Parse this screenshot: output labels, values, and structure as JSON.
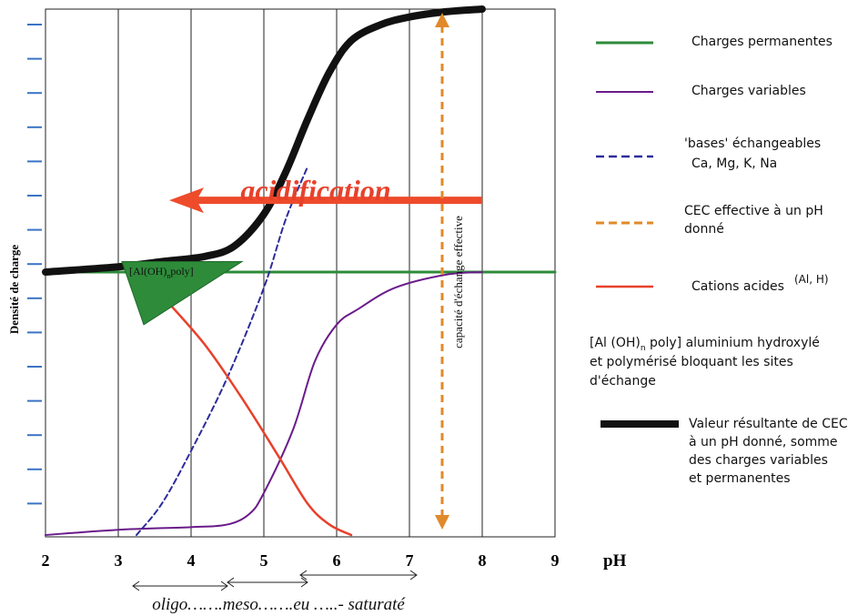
{
  "chart_data": {
    "type": "line",
    "title": "",
    "xlabel": "pH",
    "ylabel": "Densité de charge",
    "xlim": [
      2,
      9
    ],
    "x_ticks": [
      "2",
      "3",
      "4",
      "5",
      "6",
      "7",
      "8",
      "9"
    ],
    "grid": true,
    "legend_placement": "right",
    "series": [
      {
        "key": "permanent",
        "name": "Charges permanentes",
        "color": "#2e8b3a",
        "style": "solid",
        "x": [
          2,
          9
        ],
        "y": [
          0.5,
          0.5
        ]
      },
      {
        "key": "variable",
        "name": "Charges variables",
        "color": "#6a1b8a",
        "style": "solid",
        "x": [
          2,
          3,
          4,
          4.5,
          4.8,
          5,
          5.4,
          5.7,
          6,
          6.3,
          6.8,
          7.5,
          8
        ],
        "y": [
          0.0,
          0.01,
          0.015,
          0.02,
          0.04,
          0.08,
          0.2,
          0.33,
          0.4,
          0.43,
          0.47,
          0.495,
          0.5
        ]
      },
      {
        "key": "bases",
        "name": "'bases' échangeables",
        "sublabel": "Ca, Mg, K, Na",
        "color": "#2c2c9c",
        "style": "dashed",
        "x": [
          3.25,
          3.6,
          4,
          4.5,
          5,
          5.3,
          5.6
        ],
        "y": [
          0.0,
          0.06,
          0.16,
          0.3,
          0.47,
          0.6,
          0.7
        ]
      },
      {
        "key": "acid",
        "name": "Cations acides",
        "superscript": "(Al, H)",
        "color": "#e8412b",
        "style": "solid",
        "x": [
          3.7,
          4.2,
          4.7,
          5.2,
          5.6,
          5.9,
          6.2
        ],
        "y": [
          0.44,
          0.36,
          0.26,
          0.15,
          0.06,
          0.02,
          0.0
        ]
      },
      {
        "key": "cec",
        "name": "Valeur résultante de CEC",
        "color": "#111111",
        "style": "thick",
        "x": [
          2,
          3,
          3.6,
          4.2,
          4.6,
          5,
          5.3,
          5.6,
          5.9,
          6.2,
          6.6,
          7,
          7.5,
          8
        ],
        "y": [
          0.5,
          0.51,
          0.52,
          0.53,
          0.55,
          0.61,
          0.69,
          0.79,
          0.88,
          0.94,
          0.97,
          0.985,
          0.995,
          1.0
        ]
      }
    ],
    "annotations": {
      "acidification": "acidification",
      "acidification_arrow_x": [
        8,
        3.7
      ],
      "acidification_arrow_y": 0.64,
      "cec_effective_label": "capacité d'échange effective",
      "cec_effective_x": 7.45,
      "cec_effective_y": [
        0.02,
        1.0
      ],
      "al_label_main": "[Al(OH)",
      "al_label_sub": "n",
      "al_label_end": "poly]",
      "range_label": "oligo…….meso…….eu …..- saturaté",
      "ranges": [
        [
          3.2,
          4.5
        ],
        [
          4.5,
          5.6
        ],
        [
          5.5,
          7.1
        ]
      ]
    },
    "legend": [
      {
        "key": "permanent",
        "lines": [
          "Charges permanentes"
        ]
      },
      {
        "key": "variable",
        "lines": [
          "Charges variables"
        ]
      },
      {
        "key": "bases",
        "lines": [
          "'bases' échangeables",
          "Ca, Mg, K, Na"
        ]
      },
      {
        "key": "cec_eff",
        "color": "#e08a2a",
        "style": "dashed",
        "lines": [
          "CEC effective à un pH",
          "donné"
        ]
      },
      {
        "key": "acid",
        "lines": [
          "Cations acides"
        ],
        "superscript": "(Al, H)"
      },
      {
        "key": "al_text",
        "lines": [
          "[Al (OH)",
          "n",
          " poly]   aluminium hydroxylé",
          "et polymérisé bloquant les sites",
          "d'échange"
        ]
      },
      {
        "key": "cec",
        "lines": [
          "Valeur résultante de CEC",
          "à un pH donné, somme",
          "des charges variables",
          "et permanentes"
        ]
      }
    ]
  }
}
